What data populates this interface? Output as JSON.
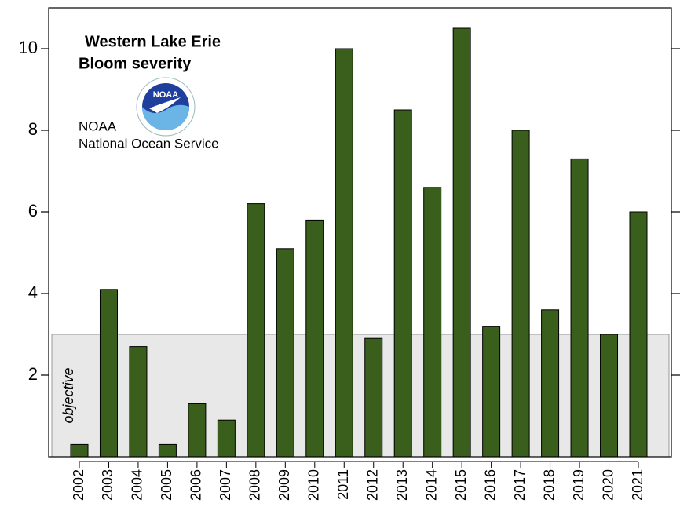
{
  "chart_data": {
    "type": "bar",
    "title": "Western Lake Erie",
    "subtitle": "Bloom severity",
    "source": [
      "NOAA",
      "National Ocean Service"
    ],
    "logo_text": "NOAA",
    "categories": [
      "2002",
      "2003",
      "2004",
      "2005",
      "2006",
      "2007",
      "2008",
      "2009",
      "2010",
      "2011",
      "2012",
      "2013",
      "2014",
      "2015",
      "2016",
      "2017",
      "2018",
      "2019",
      "2020",
      "2021"
    ],
    "values": [
      0.3,
      4.1,
      2.7,
      0.3,
      1.3,
      0.9,
      6.2,
      5.1,
      5.8,
      10.0,
      2.9,
      8.5,
      6.6,
      10.5,
      3.2,
      8.0,
      3.6,
      7.3,
      3.0,
      6.0
    ],
    "color": "#3a5e1c",
    "ylim": [
      0,
      11
    ],
    "yticks": [
      2,
      4,
      6,
      8,
      10
    ],
    "objective": {
      "label": "objective",
      "value": 3,
      "color": "#e8e8e8"
    }
  }
}
